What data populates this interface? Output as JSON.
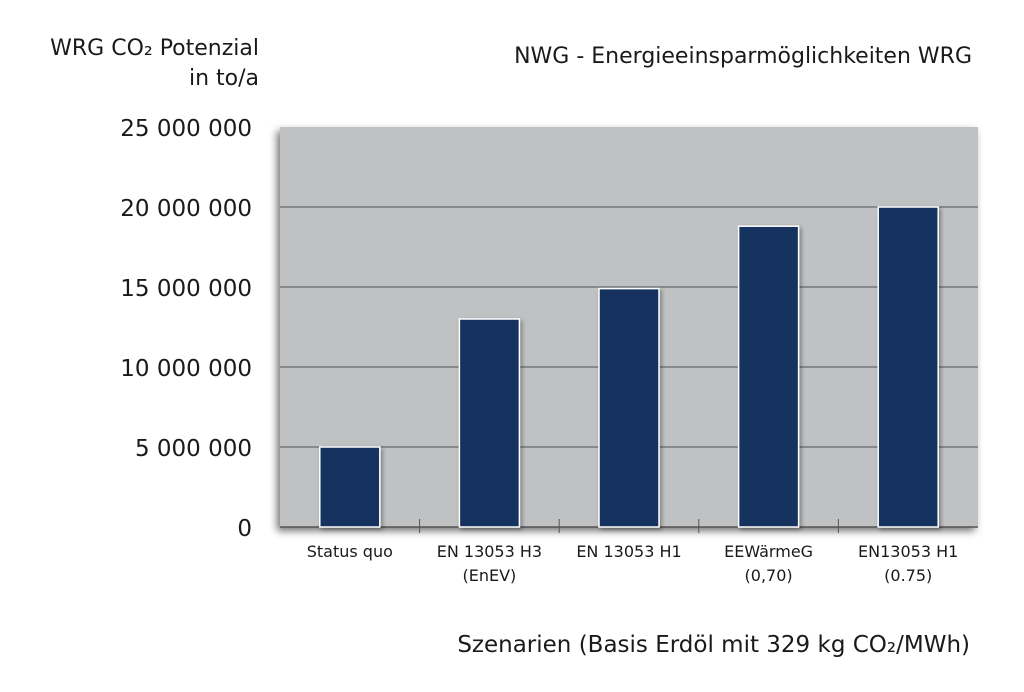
{
  "chart_data": {
    "type": "bar",
    "title": "NWG - Energieeinsparmöglichkeiten WRG",
    "ylabel_line1": "WRG CO₂ Potenzial",
    "ylabel_line2": "in to/a",
    "xlabel": "Szenarien (Basis Erdöl mit 329 kg CO₂/MWh)",
    "categories": [
      [
        "Status quo"
      ],
      [
        "EN 13053 H3",
        "(EnEV)"
      ],
      [
        "EN 13053 H1"
      ],
      [
        "EEWärmeG",
        "(0,70)"
      ],
      [
        "EN13053 H1",
        "(0.75)"
      ]
    ],
    "values": [
      5000000,
      13000000,
      14900000,
      18800000,
      20000000
    ],
    "ylim": [
      0,
      25000000
    ],
    "yticks": [
      0,
      5000000,
      10000000,
      15000000,
      20000000,
      25000000
    ],
    "ytick_labels": [
      "0",
      "5 000 000",
      "10 000 000",
      "15 000 000",
      "20 000 000",
      "25 000 000"
    ],
    "grid": true,
    "colors": {
      "bar": "#13305f",
      "plot_bg": "#c0c1c3",
      "grid": "#77787a"
    }
  }
}
